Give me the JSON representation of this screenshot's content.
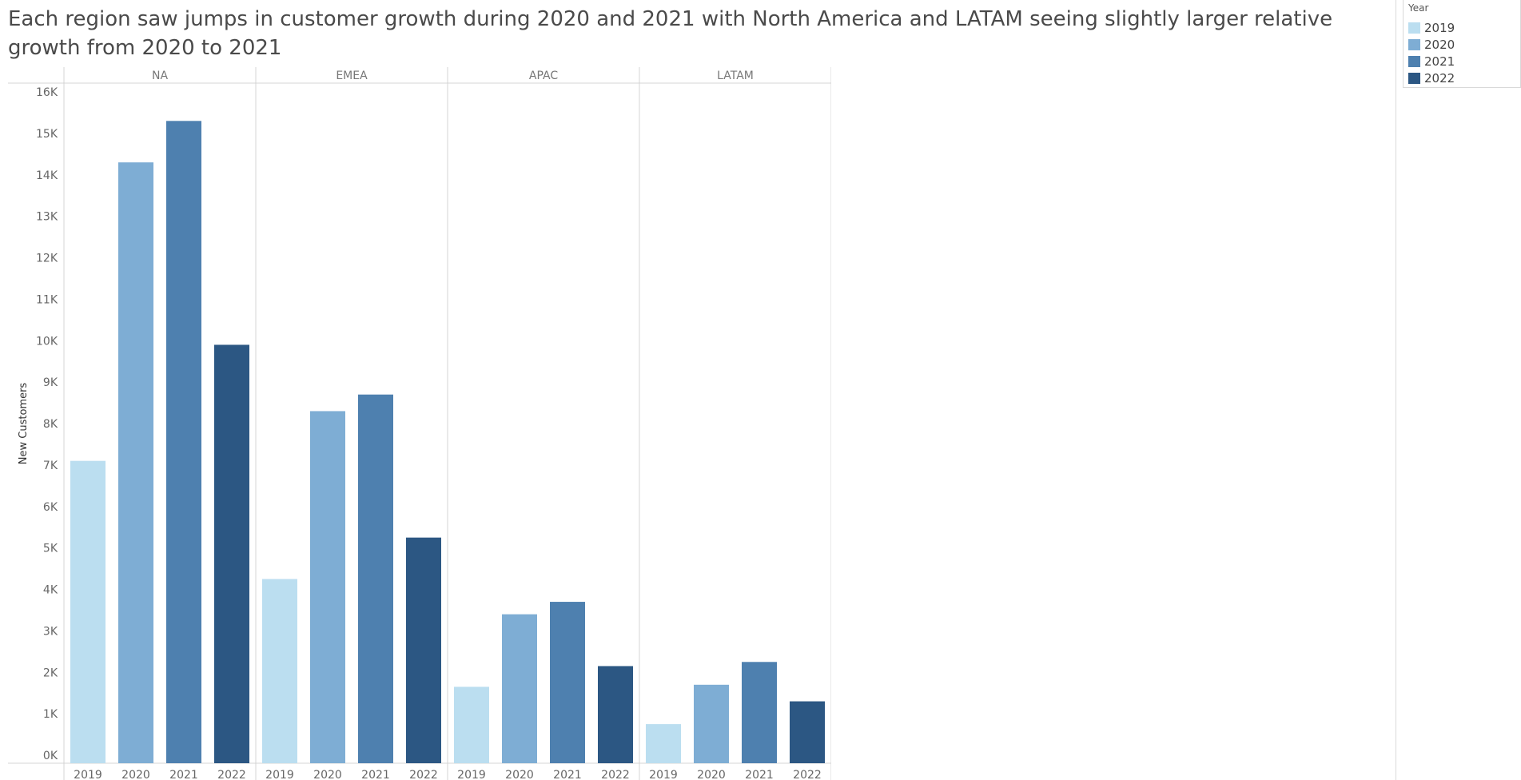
{
  "title": "Each region saw jumps in customer growth during 2020 and 2021 with North America and LATAM seeing slightly larger relative growth from 2020 to 2021",
  "legend": {
    "title": "Year",
    "items": [
      {
        "label": "2019",
        "color": "#bbdef0"
      },
      {
        "label": "2020",
        "color": "#7eadd4"
      },
      {
        "label": "2021",
        "color": "#4e80af"
      },
      {
        "label": "2022",
        "color": "#2c5783"
      }
    ]
  },
  "chart_data": {
    "type": "bar",
    "title": "Each region saw jumps in customer growth during 2020 and 2021 with North America and LATAM seeing slightly larger relative growth from 2020 to 2021",
    "ylabel": "New Customers",
    "xlabel": "",
    "ylim": [
      0,
      16000
    ],
    "y_ticks": [
      0,
      1000,
      2000,
      3000,
      4000,
      5000,
      6000,
      7000,
      8000,
      9000,
      10000,
      11000,
      12000,
      13000,
      14000,
      15000,
      16000
    ],
    "y_tick_labels": [
      "0K",
      "1K",
      "2K",
      "3K",
      "4K",
      "5K",
      "6K",
      "7K",
      "8K",
      "9K",
      "10K",
      "11K",
      "12K",
      "13K",
      "14K",
      "15K",
      "16K"
    ],
    "panels": [
      "NA",
      "EMEA",
      "APAC",
      "LATAM"
    ],
    "categories": [
      "2019",
      "2020",
      "2021",
      "2022"
    ],
    "series": [
      {
        "panel": "NA",
        "values": [
          7100,
          14300,
          15300,
          9900
        ]
      },
      {
        "panel": "EMEA",
        "values": [
          4250,
          8300,
          8700,
          5250
        ]
      },
      {
        "panel": "APAC",
        "values": [
          1650,
          3400,
          3700,
          2150
        ]
      },
      {
        "panel": "LATAM",
        "values": [
          750,
          1700,
          2250,
          1300
        ]
      }
    ],
    "colors": [
      "#bbdef0",
      "#7eadd4",
      "#4e80af",
      "#2c5783"
    ],
    "grid": false,
    "legend_position": "top-right"
  }
}
